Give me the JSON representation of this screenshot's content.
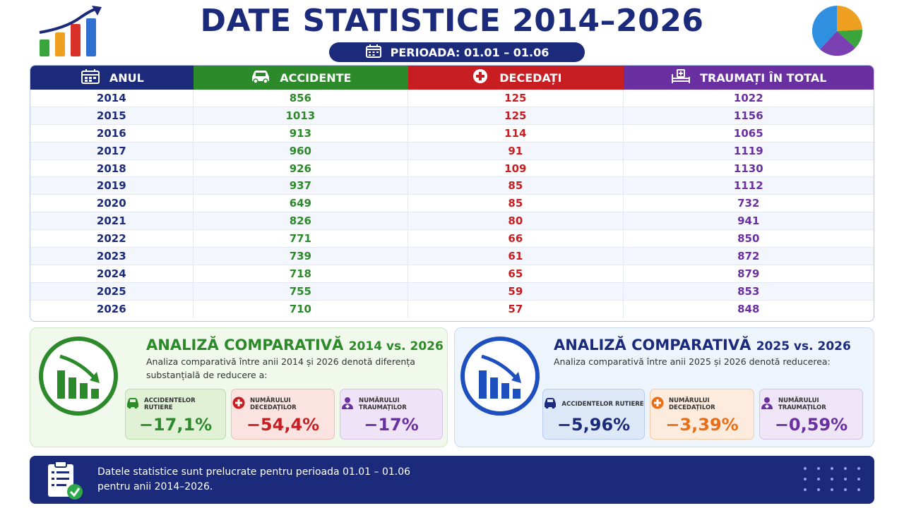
{
  "header": {
    "title": "DATE STATISTICE 2014–2026",
    "period": "PERIOADA: 01.01 – 01.06"
  },
  "colors": {
    "navy": "#1b2a7a",
    "green": "#2c8a2a",
    "red": "#c81e22",
    "purple": "#6a2fa0",
    "orange": "#ea6e15"
  },
  "chart_data": {
    "type": "table",
    "columns": [
      "ANUL",
      "ACCIDENTE",
      "DECEDAȚI",
      "TRAUMAȚI ÎN TOTAL"
    ],
    "column_icons": [
      "calendar-icon",
      "car-icon",
      "medical-cross-icon",
      "hospital-bed-icon"
    ],
    "rows": [
      [
        "2014",
        "856",
        "125",
        "1022"
      ],
      [
        "2015",
        "1013",
        "125",
        "1156"
      ],
      [
        "2016",
        "913",
        "114",
        "1065"
      ],
      [
        "2017",
        "960",
        "91",
        "1119"
      ],
      [
        "2018",
        "926",
        "109",
        "1130"
      ],
      [
        "2019",
        "937",
        "85",
        "1112"
      ],
      [
        "2020",
        "649",
        "85",
        "732"
      ],
      [
        "2021",
        "826",
        "80",
        "941"
      ],
      [
        "2022",
        "771",
        "66",
        "850"
      ],
      [
        "2023",
        "739",
        "61",
        "872"
      ],
      [
        "2024",
        "718",
        "65",
        "879"
      ],
      [
        "2025",
        "755",
        "59",
        "853"
      ],
      [
        "2026",
        "710",
        "57",
        "848"
      ]
    ]
  },
  "panels": {
    "left": {
      "title_main": "ANALIZĂ COMPARATIVĂ",
      "title_years": "2014 vs. 2026",
      "desc": "Analiza comparativă între anii 2014 și 2026 denotă diferența substanțială de reducere a:",
      "stats": [
        {
          "label": "ACCIDENTELOR RUTIERE",
          "value": "−17,1%",
          "icon": "car-icon"
        },
        {
          "label": "NUMĂRULUI DECEDAȚILOR",
          "value": "−54,4%",
          "icon": "medical-cross-icon"
        },
        {
          "label": "NUMĂRULUI TRAUMAȚILOR",
          "value": "−17%",
          "icon": "injured-person-icon"
        }
      ]
    },
    "right": {
      "title_main": "ANALIZĂ COMPARATIVĂ",
      "title_years": "2025 vs. 2026",
      "desc": "Analiza comparativă între anii 2025 și 2026 denotă reducerea:",
      "stats": [
        {
          "label": "ACCIDENTELOR RUTIERE",
          "value": "−5,96%",
          "icon": "car-icon"
        },
        {
          "label": "NUMĂRULUI DECEDAȚILOR",
          "value": "−3,39%",
          "icon": "medical-cross-icon"
        },
        {
          "label": "NUMĂRULUI TRAUMAȚILOR",
          "value": "−0,59%",
          "icon": "injured-person-icon"
        }
      ]
    }
  },
  "footer": {
    "line1": "Datele statistice sunt prelucrate pentru perioada 01.01 – 01.06",
    "line2": "pentru anii 2014–2026."
  }
}
